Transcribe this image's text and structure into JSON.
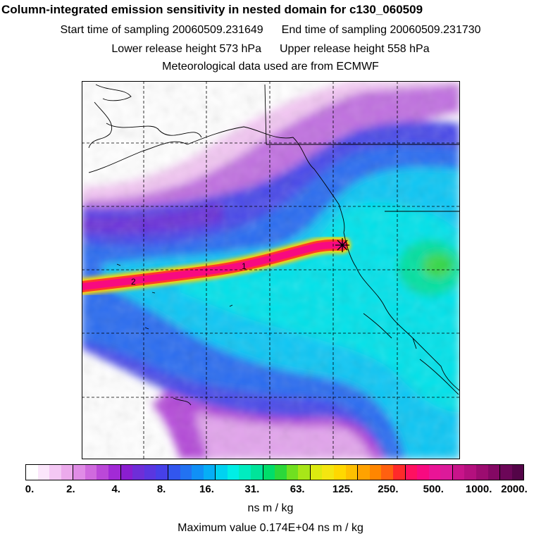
{
  "title": "Column-integrated emission sensitivity in nested domain for c130_060509",
  "sampling": {
    "start_label": "Start time of sampling 20060509.231649",
    "end_label": "End time of sampling 20060509.231730"
  },
  "release": {
    "lower_label": "Lower release height  573 hPa",
    "upper_label": "Upper release height  558 hPa"
  },
  "met_label": "Meteorological data used are from ECMWF",
  "map": {
    "trajectory_labels": [
      "1",
      "2"
    ],
    "release_marker": "release-point-star"
  },
  "colorbar": {
    "tick_labels": [
      "0.",
      "2.",
      "4.",
      "8.",
      "16.",
      "31.",
      "63.",
      "125.",
      "250.",
      "500.",
      "1000.",
      "2000."
    ],
    "colors": [
      "#ffffff",
      "#fbe6fb",
      "#f4c8f4",
      "#ecaaec",
      "#e08ce6",
      "#d06ade",
      "#bb48d8",
      "#a22ad6",
      "#8a1ed0",
      "#6e2ed8",
      "#5a36e0",
      "#4640e8",
      "#3256ee",
      "#2272f2",
      "#1090f6",
      "#06aef6",
      "#00d2f0",
      "#00eee6",
      "#00ecc0",
      "#00e49a",
      "#00de6a",
      "#2cd83a",
      "#70e020",
      "#a8e618",
      "#dcea10",
      "#f4e610",
      "#ffd800",
      "#ffc000",
      "#ffa200",
      "#ff8600",
      "#ff6010",
      "#ff2a2a",
      "#ff1060",
      "#f80a80",
      "#ea1496",
      "#dc1a9a",
      "#c8148a",
      "#b4107e",
      "#9c0c70",
      "#840864",
      "#6c0658",
      "#540448"
    ],
    "units": "ns m / kg"
  },
  "max_value_label": "Maximum value  0.174E+04 ns m / kg"
}
